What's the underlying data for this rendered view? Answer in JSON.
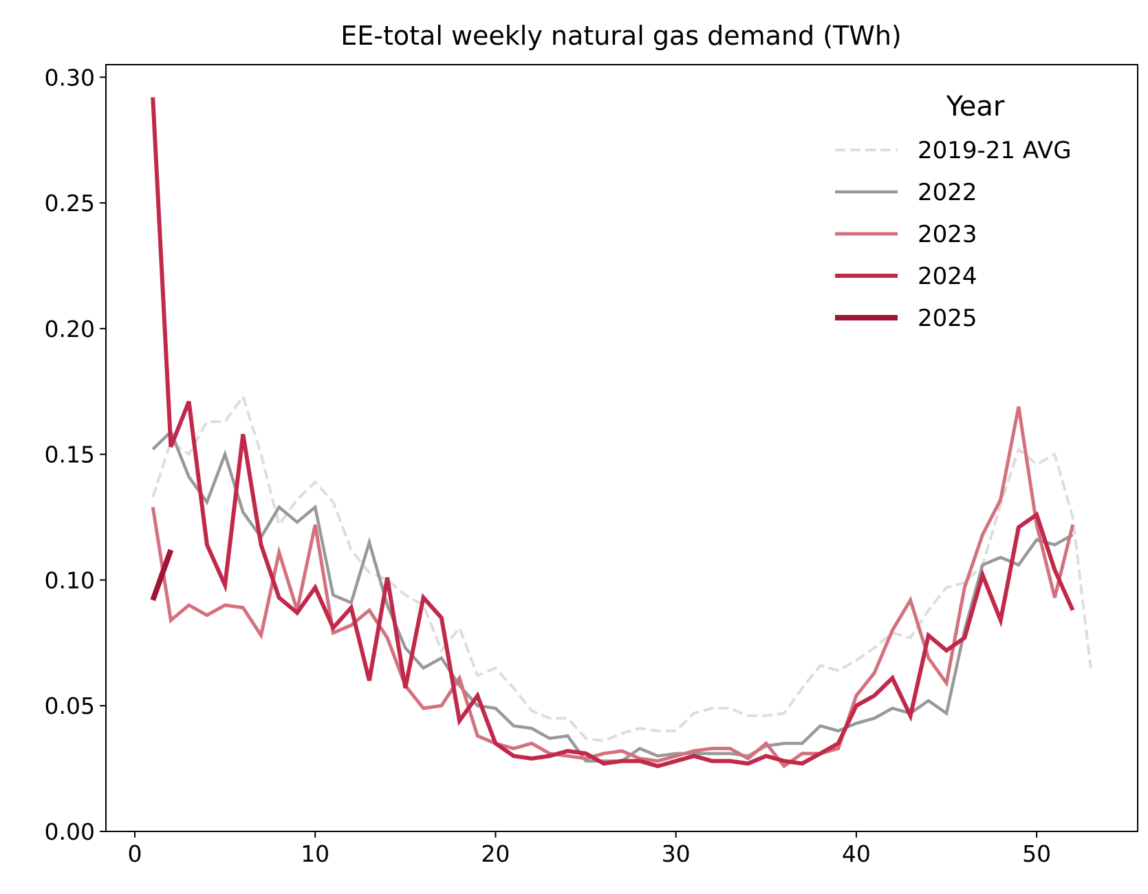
{
  "chart_data": {
    "type": "line",
    "title": "EE-total weekly natural gas demand (TWh)",
    "xlabel": "",
    "ylabel": "",
    "xlim": [
      -1.6,
      55.6
    ],
    "ylim": [
      0.0,
      0.305
    ],
    "x_ticks": [
      0,
      10,
      20,
      30,
      40,
      50
    ],
    "x_tick_labels": [
      "0",
      "10",
      "20",
      "30",
      "40",
      "50"
    ],
    "y_ticks": [
      0.0,
      0.05,
      0.1,
      0.15,
      0.2,
      0.25,
      0.3
    ],
    "y_tick_labels": [
      "0.00",
      "0.05",
      "0.10",
      "0.15",
      "0.20",
      "0.25",
      "0.30"
    ],
    "grid": false,
    "legend": {
      "title": "Year",
      "position": "top-right"
    },
    "series": [
      {
        "name": "2019-21 AVG",
        "color": "#dddddd",
        "style": "dashed",
        "x": [
          1,
          2,
          3,
          4,
          5,
          6,
          7,
          8,
          9,
          10,
          11,
          12,
          13,
          14,
          15,
          16,
          17,
          18,
          19,
          20,
          21,
          22,
          23,
          24,
          25,
          26,
          27,
          28,
          29,
          30,
          31,
          32,
          33,
          34,
          35,
          36,
          37,
          38,
          39,
          40,
          41,
          42,
          43,
          44,
          45,
          46,
          47,
          48,
          49,
          50,
          51,
          52,
          53
        ],
        "values": [
          0.133,
          0.155,
          0.15,
          0.163,
          0.163,
          0.173,
          0.15,
          0.122,
          0.132,
          0.139,
          0.131,
          0.112,
          0.103,
          0.1,
          0.094,
          0.09,
          0.072,
          0.081,
          0.062,
          0.065,
          0.057,
          0.048,
          0.045,
          0.045,
          0.037,
          0.036,
          0.039,
          0.041,
          0.04,
          0.04,
          0.047,
          0.049,
          0.049,
          0.046,
          0.046,
          0.047,
          0.057,
          0.066,
          0.064,
          0.068,
          0.073,
          0.079,
          0.077,
          0.088,
          0.097,
          0.099,
          0.106,
          0.13,
          0.152,
          0.146,
          0.15,
          0.125,
          0.065
        ]
      },
      {
        "name": "2022",
        "color": "#999999",
        "style": "solid",
        "x": [
          1,
          2,
          3,
          4,
          5,
          6,
          7,
          8,
          9,
          10,
          11,
          12,
          13,
          14,
          15,
          16,
          17,
          18,
          19,
          20,
          21,
          22,
          23,
          24,
          25,
          26,
          27,
          28,
          29,
          30,
          31,
          32,
          33,
          34,
          35,
          36,
          37,
          38,
          39,
          40,
          41,
          42,
          43,
          44,
          45,
          46,
          47,
          48,
          49,
          50,
          51,
          52
        ],
        "values": [
          0.152,
          0.159,
          0.141,
          0.131,
          0.15,
          0.127,
          0.117,
          0.129,
          0.123,
          0.129,
          0.094,
          0.091,
          0.115,
          0.09,
          0.073,
          0.065,
          0.069,
          0.058,
          0.05,
          0.049,
          0.042,
          0.041,
          0.037,
          0.038,
          0.028,
          0.028,
          0.028,
          0.033,
          0.03,
          0.031,
          0.031,
          0.031,
          0.031,
          0.03,
          0.034,
          0.035,
          0.035,
          0.042,
          0.04,
          0.043,
          0.045,
          0.049,
          0.047,
          0.052,
          0.047,
          0.08,
          0.106,
          0.109,
          0.106,
          0.116,
          0.114,
          0.118
        ]
      },
      {
        "name": "2023",
        "color": "#d4717e",
        "style": "solid",
        "x": [
          1,
          2,
          3,
          4,
          5,
          6,
          7,
          8,
          9,
          10,
          11,
          12,
          13,
          14,
          15,
          16,
          17,
          18,
          19,
          20,
          21,
          22,
          23,
          24,
          25,
          26,
          27,
          28,
          29,
          30,
          31,
          32,
          33,
          34,
          35,
          36,
          37,
          38,
          39,
          40,
          41,
          42,
          43,
          44,
          45,
          46,
          47,
          48,
          49,
          50,
          51,
          52
        ],
        "values": [
          0.129,
          0.084,
          0.09,
          0.086,
          0.09,
          0.089,
          0.078,
          0.111,
          0.088,
          0.122,
          0.079,
          0.082,
          0.088,
          0.077,
          0.058,
          0.049,
          0.05,
          0.061,
          0.038,
          0.035,
          0.033,
          0.035,
          0.031,
          0.03,
          0.029,
          0.031,
          0.032,
          0.029,
          0.028,
          0.03,
          0.032,
          0.033,
          0.033,
          0.029,
          0.035,
          0.026,
          0.031,
          0.031,
          0.033,
          0.054,
          0.063,
          0.08,
          0.092,
          0.069,
          0.059,
          0.097,
          0.118,
          0.132,
          0.169,
          0.122,
          0.093,
          0.122
        ]
      },
      {
        "name": "2024",
        "color": "#c0294a",
        "style": "solid",
        "x": [
          1,
          2,
          3,
          4,
          5,
          6,
          7,
          8,
          9,
          10,
          11,
          12,
          13,
          14,
          15,
          16,
          17,
          18,
          19,
          20,
          21,
          22,
          23,
          24,
          25,
          26,
          27,
          28,
          29,
          30,
          31,
          32,
          33,
          34,
          35,
          36,
          37,
          38,
          39,
          40,
          41,
          42,
          43,
          44,
          45,
          46,
          47,
          48,
          49,
          50,
          51,
          52
        ],
        "values": [
          0.292,
          0.153,
          0.171,
          0.114,
          0.098,
          0.158,
          0.114,
          0.093,
          0.087,
          0.097,
          0.081,
          0.089,
          0.06,
          0.101,
          0.057,
          0.093,
          0.085,
          0.044,
          0.054,
          0.035,
          0.03,
          0.029,
          0.03,
          0.032,
          0.031,
          0.027,
          0.028,
          0.028,
          0.026,
          0.028,
          0.03,
          0.028,
          0.028,
          0.027,
          0.03,
          0.028,
          0.027,
          0.031,
          0.035,
          0.05,
          0.054,
          0.061,
          0.046,
          0.078,
          0.072,
          0.077,
          0.102,
          0.084,
          0.121,
          0.126,
          0.104,
          0.088
        ]
      },
      {
        "name": "2025",
        "color": "#a01535",
        "style": "solid",
        "x": [
          1,
          2
        ],
        "values": [
          0.092,
          0.112
        ]
      }
    ]
  }
}
